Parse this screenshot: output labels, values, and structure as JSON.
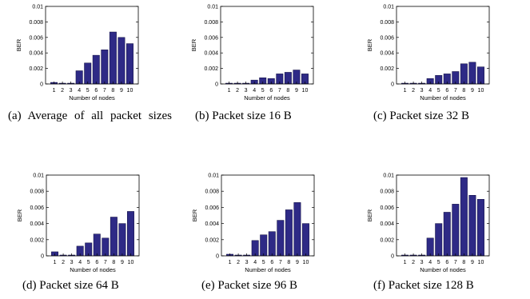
{
  "colors": {
    "bar": "#2e2a86",
    "bar_edge": "#0c0a3c",
    "axis": "#000000"
  },
  "chart_data": [
    {
      "type": "bar",
      "categories": [
        "1",
        "2",
        "3",
        "4",
        "5",
        "6",
        "7",
        "8",
        "9",
        "10"
      ],
      "values": [
        0.0002,
        0.0001,
        0.0001,
        0.0017,
        0.0027,
        0.0037,
        0.0044,
        0.0067,
        0.006,
        0.0052
      ],
      "xlabel": "Number of nodes",
      "ylabel": "BER",
      "ylim": [
        0,
        0.01
      ],
      "yticks": [
        "0",
        "0.002",
        "0.004",
        "0.006",
        "0.008",
        "0.01"
      ],
      "caption": "(a)  Average  of  all packet sizes"
    },
    {
      "type": "bar",
      "categories": [
        "1",
        "2",
        "3",
        "4",
        "5",
        "6",
        "7",
        "8",
        "9",
        "10"
      ],
      "values": [
        0.0001,
        0.0001,
        0.0001,
        0.0005,
        0.0008,
        0.0007,
        0.0013,
        0.0015,
        0.0018,
        0.0013
      ],
      "xlabel": "Number of nodes",
      "ylabel": "BER",
      "ylim": [
        0,
        0.01
      ],
      "yticks": [
        "0",
        "0.002",
        "0.004",
        "0.006",
        "0.008",
        "0.01"
      ],
      "caption": "(b) Packet size 16 B"
    },
    {
      "type": "bar",
      "categories": [
        "1",
        "2",
        "3",
        "4",
        "5",
        "6",
        "7",
        "8",
        "9",
        "10"
      ],
      "values": [
        0.0001,
        0.0001,
        0.0001,
        0.0007,
        0.0011,
        0.0013,
        0.0016,
        0.0026,
        0.0028,
        0.0022
      ],
      "xlabel": "Number of nodes",
      "ylabel": "BER",
      "ylim": [
        0,
        0.01
      ],
      "yticks": [
        "0",
        "0.002",
        "0.004",
        "0.006",
        "0.008",
        "0.01"
      ],
      "caption": "(c) Packet size 32 B"
    },
    {
      "type": "bar",
      "categories": [
        "1",
        "2",
        "3",
        "4",
        "5",
        "6",
        "7",
        "8",
        "9",
        "10"
      ],
      "values": [
        0.0005,
        0.0001,
        0.0001,
        0.0012,
        0.0016,
        0.0027,
        0.0022,
        0.0048,
        0.004,
        0.0055
      ],
      "xlabel": "Number of nodes",
      "ylabel": "BER",
      "ylim": [
        0,
        0.01
      ],
      "yticks": [
        "0",
        "0.002",
        "0.004",
        "0.006",
        "0.008",
        "0.01"
      ],
      "caption": "(d) Packet size 64 B"
    },
    {
      "type": "bar",
      "categories": [
        "1",
        "2",
        "3",
        "4",
        "5",
        "6",
        "7",
        "8",
        "9",
        "10"
      ],
      "values": [
        0.0002,
        0.0001,
        0.0001,
        0.0019,
        0.0026,
        0.003,
        0.0044,
        0.0057,
        0.0066,
        0.004
      ],
      "xlabel": "Number of nodes",
      "ylabel": "BER",
      "ylim": [
        0,
        0.01
      ],
      "yticks": [
        "0",
        "0.002",
        "0.004",
        "0.006",
        "0.008",
        "0.01"
      ],
      "caption": "(e) Packet size 96 B"
    },
    {
      "type": "bar",
      "categories": [
        "1",
        "2",
        "3",
        "4",
        "5",
        "6",
        "7",
        "8",
        "9",
        "10"
      ],
      "values": [
        0.0001,
        0.0001,
        0.0001,
        0.0022,
        0.004,
        0.0054,
        0.0064,
        0.0097,
        0.0075,
        0.007
      ],
      "xlabel": "Number of nodes",
      "ylabel": "BER",
      "ylim": [
        0,
        0.01
      ],
      "yticks": [
        "0",
        "0.002",
        "0.004",
        "0.006",
        "0.008",
        "0.01"
      ],
      "caption": "(f) Packet size 128 B"
    }
  ]
}
